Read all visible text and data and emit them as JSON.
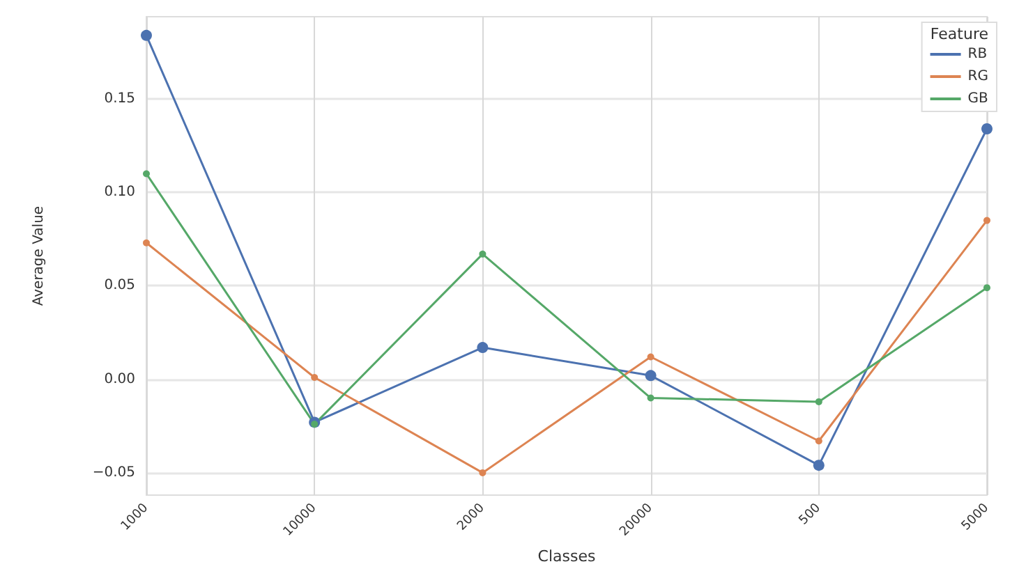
{
  "chart_data": {
    "type": "line",
    "xlabel": "Classes",
    "ylabel": "Average Value",
    "legend_title": "Feature",
    "categories": [
      "1000",
      "10000",
      "2000",
      "20000",
      "500",
      "5000"
    ],
    "series": [
      {
        "name": "RB",
        "color": "#4c72b0",
        "values": [
          0.184,
          -0.023,
          0.017,
          0.002,
          -0.046,
          0.134
        ]
      },
      {
        "name": "RG",
        "color": "#dd8452",
        "values": [
          0.073,
          0.001,
          -0.05,
          0.012,
          -0.033,
          0.085
        ]
      },
      {
        "name": "GB",
        "color": "#55a868",
        "values": [
          0.11,
          -0.024,
          0.067,
          -0.01,
          -0.012,
          0.049
        ]
      }
    ],
    "ylim": [
      -0.062,
      0.194
    ],
    "yticks": [
      {
        "value": -0.05,
        "label": "−0.05"
      },
      {
        "value": 0,
        "label": "0.00"
      },
      {
        "value": 0.05,
        "label": "0.05"
      },
      {
        "value": 0.1,
        "label": "0.10"
      },
      {
        "value": 0.15,
        "label": "0.15"
      }
    ],
    "grid": true,
    "legend": "top right",
    "marker": "circle",
    "line_style": "solid"
  }
}
